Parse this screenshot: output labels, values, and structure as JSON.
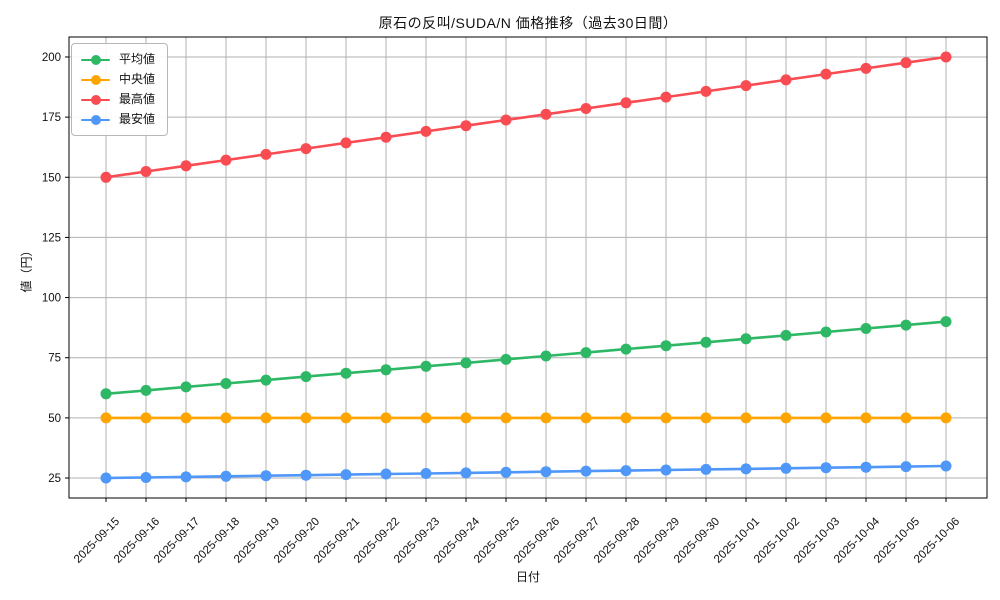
{
  "chart_data": {
    "type": "line",
    "title": "原石の反叫/SUDA/N 価格推移（過去30日間）",
    "xlabel": "日付",
    "ylabel": "値（円）",
    "grid": true,
    "legend_position": "upper-left",
    "ylim": [
      16.7,
      208.3
    ],
    "yticks": [
      25,
      50,
      75,
      100,
      125,
      150,
      175,
      200
    ],
    "categories": [
      "2025-09-15",
      "2025-09-16",
      "2025-09-17",
      "2025-09-18",
      "2025-09-19",
      "2025-09-20",
      "2025-09-21",
      "2025-09-22",
      "2025-09-23",
      "2025-09-24",
      "2025-09-25",
      "2025-09-26",
      "2025-09-27",
      "2025-09-28",
      "2025-09-29",
      "2025-09-30",
      "2025-10-01",
      "2025-10-02",
      "2025-10-03",
      "2025-10-04",
      "2025-10-05",
      "2025-10-06"
    ],
    "series": [
      {
        "key": "average",
        "name": "平均値",
        "color": "#2eb866",
        "values": [
          60,
          61.43,
          62.86,
          64.29,
          65.71,
          67.14,
          68.57,
          70,
          71.43,
          72.86,
          74.29,
          75.71,
          77.14,
          78.57,
          80,
          81.43,
          82.86,
          84.29,
          85.71,
          87.14,
          88.57,
          90
        ]
      },
      {
        "key": "median",
        "name": "中央値",
        "color": "#ffa502",
        "values": [
          50,
          50,
          50,
          50,
          50,
          50,
          50,
          50,
          50,
          50,
          50,
          50,
          50,
          50,
          50,
          50,
          50,
          50,
          50,
          50,
          50,
          50
        ]
      },
      {
        "key": "max",
        "name": "最高値",
        "color": "#f94b52",
        "values": [
          150,
          152.38,
          154.76,
          157.14,
          159.52,
          161.9,
          164.29,
          166.67,
          169.05,
          171.43,
          173.81,
          176.19,
          178.57,
          180.95,
          183.33,
          185.71,
          188.1,
          190.48,
          192.86,
          195.24,
          197.62,
          200
        ]
      },
      {
        "key": "min",
        "name": "最安値",
        "color": "#4f97f9",
        "values": [
          25,
          25.24,
          25.48,
          25.71,
          25.95,
          26.19,
          26.43,
          26.67,
          26.9,
          27.14,
          27.38,
          27.62,
          27.86,
          28.1,
          28.33,
          28.57,
          28.81,
          29.05,
          29.29,
          29.52,
          29.76,
          30
        ]
      }
    ]
  }
}
